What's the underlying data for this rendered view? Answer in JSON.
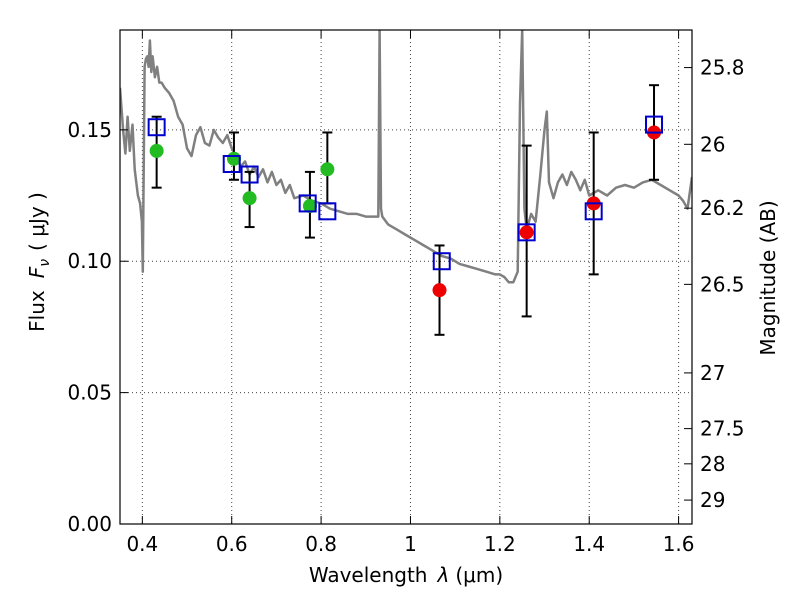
{
  "chart_data": {
    "type": "scatter",
    "xlabel_prefix": "Wavelength",
    "xlabel_symbol": "λ",
    "xlabel_unit": "(μm)",
    "ylabel_prefix": "Flux",
    "ylabel_symbol": "F",
    "ylabel_subscript": "ν",
    "ylabel_unit": "( μJy )",
    "y2label": "Magnitude (AB)",
    "xlim": [
      0.35,
      1.63
    ],
    "ylim": [
      0.0,
      0.188
    ],
    "grid": true,
    "x_ticks": [
      0.4,
      0.6,
      0.8,
      1.0,
      1.2,
      1.4,
      1.6
    ],
    "x_tick_labels": [
      "0.4",
      "0.6",
      "0.8",
      "1",
      "1.2",
      "1.4",
      "1.6"
    ],
    "y_ticks": [
      0.0,
      0.05,
      0.1,
      0.15
    ],
    "y_tick_labels": [
      "0.00",
      "0.05",
      "0.10",
      "0.15"
    ],
    "magnitude_ticks": [
      {
        "label": "25.8",
        "flux": 0.1737
      },
      {
        "label": "26",
        "flux": 0.1445
      },
      {
        "label": "26.2",
        "flux": 0.1202
      },
      {
        "label": "26.5",
        "flux": 0.0912
      },
      {
        "label": "27",
        "flux": 0.0575
      },
      {
        "label": "27.5",
        "flux": 0.0363
      },
      {
        "label": "28",
        "flux": 0.0229
      },
      {
        "label": "29",
        "flux": 0.0091
      }
    ],
    "colors": {
      "template": "#808080",
      "green_points": "#22bb22",
      "red_points": "#ee0000",
      "model_squares": "#0000cc",
      "errorbars": "#000000",
      "grid": "#444444"
    },
    "template_spectrum": [
      [
        0.35,
        0.166
      ],
      [
        0.357,
        0.15
      ],
      [
        0.362,
        0.141
      ],
      [
        0.367,
        0.155
      ],
      [
        0.372,
        0.142
      ],
      [
        0.378,
        0.152
      ],
      [
        0.383,
        0.135
      ],
      [
        0.39,
        0.125
      ],
      [
        0.395,
        0.122
      ],
      [
        0.399,
        0.115
      ],
      [
        0.401,
        0.096
      ],
      [
        0.403,
        0.135
      ],
      [
        0.405,
        0.174
      ],
      [
        0.408,
        0.177
      ],
      [
        0.411,
        0.178
      ],
      [
        0.414,
        0.174
      ],
      [
        0.417,
        0.184
      ],
      [
        0.42,
        0.172
      ],
      [
        0.423,
        0.178
      ],
      [
        0.428,
        0.17
      ],
      [
        0.433,
        0.174
      ],
      [
        0.438,
        0.168
      ],
      [
        0.443,
        0.168
      ],
      [
        0.45,
        0.166
      ],
      [
        0.46,
        0.164
      ],
      [
        0.47,
        0.161
      ],
      [
        0.48,
        0.155
      ],
      [
        0.49,
        0.152
      ],
      [
        0.5,
        0.143
      ],
      [
        0.51,
        0.14
      ],
      [
        0.52,
        0.148
      ],
      [
        0.53,
        0.151
      ],
      [
        0.54,
        0.145
      ],
      [
        0.55,
        0.144
      ],
      [
        0.56,
        0.15
      ],
      [
        0.57,
        0.147
      ],
      [
        0.58,
        0.145
      ],
      [
        0.59,
        0.148
      ],
      [
        0.6,
        0.143
      ],
      [
        0.61,
        0.14
      ],
      [
        0.62,
        0.136
      ],
      [
        0.63,
        0.138
      ],
      [
        0.64,
        0.133
      ],
      [
        0.65,
        0.136
      ],
      [
        0.66,
        0.132
      ],
      [
        0.67,
        0.135
      ],
      [
        0.68,
        0.13
      ],
      [
        0.69,
        0.134
      ],
      [
        0.7,
        0.129
      ],
      [
        0.71,
        0.131
      ],
      [
        0.72,
        0.126
      ],
      [
        0.73,
        0.129
      ],
      [
        0.74,
        0.124
      ],
      [
        0.76,
        0.125
      ],
      [
        0.78,
        0.123
      ],
      [
        0.8,
        0.122
      ],
      [
        0.82,
        0.12
      ],
      [
        0.84,
        0.119
      ],
      [
        0.86,
        0.118
      ],
      [
        0.88,
        0.118
      ],
      [
        0.9,
        0.117
      ],
      [
        0.92,
        0.117
      ],
      [
        0.928,
        0.117
      ],
      [
        0.931,
        0.188
      ],
      [
        0.934,
        0.12
      ],
      [
        0.937,
        0.117
      ],
      [
        0.95,
        0.114
      ],
      [
        0.97,
        0.112
      ],
      [
        0.99,
        0.11
      ],
      [
        1.01,
        0.108
      ],
      [
        1.03,
        0.106
      ],
      [
        1.05,
        0.104
      ],
      [
        1.07,
        0.102
      ],
      [
        1.09,
        0.101
      ],
      [
        1.11,
        0.099
      ],
      [
        1.13,
        0.098
      ],
      [
        1.15,
        0.097
      ],
      [
        1.17,
        0.096
      ],
      [
        1.19,
        0.095
      ],
      [
        1.2,
        0.095
      ],
      [
        1.21,
        0.094
      ],
      [
        1.22,
        0.092
      ],
      [
        1.23,
        0.092
      ],
      [
        1.24,
        0.096
      ],
      [
        1.245,
        0.16
      ],
      [
        1.25,
        0.188
      ],
      [
        1.255,
        0.12
      ],
      [
        1.26,
        0.112
      ],
      [
        1.27,
        0.118
      ],
      [
        1.28,
        0.115
      ],
      [
        1.29,
        0.132
      ],
      [
        1.3,
        0.15
      ],
      [
        1.305,
        0.157
      ],
      [
        1.31,
        0.13
      ],
      [
        1.32,
        0.124
      ],
      [
        1.33,
        0.13
      ],
      [
        1.34,
        0.133
      ],
      [
        1.35,
        0.129
      ],
      [
        1.36,
        0.134
      ],
      [
        1.37,
        0.131
      ],
      [
        1.38,
        0.127
      ],
      [
        1.39,
        0.131
      ],
      [
        1.4,
        0.125
      ],
      [
        1.42,
        0.127
      ],
      [
        1.44,
        0.125
      ],
      [
        1.46,
        0.128
      ],
      [
        1.48,
        0.129
      ],
      [
        1.5,
        0.128
      ],
      [
        1.52,
        0.13
      ],
      [
        1.54,
        0.131
      ],
      [
        1.56,
        0.129
      ],
      [
        1.58,
        0.127
      ],
      [
        1.6,
        0.125
      ],
      [
        1.61,
        0.123
      ],
      [
        1.62,
        0.12
      ],
      [
        1.63,
        0.132
      ]
    ],
    "observed_green": [
      {
        "x": 0.432,
        "y": 0.142
      },
      {
        "x": 0.605,
        "y": 0.139
      },
      {
        "x": 0.64,
        "y": 0.124
      },
      {
        "x": 0.775,
        "y": 0.121
      },
      {
        "x": 0.814,
        "y": 0.135
      }
    ],
    "observed_red": [
      {
        "x": 1.065,
        "y": 0.089
      },
      {
        "x": 1.26,
        "y": 0.111
      },
      {
        "x": 1.41,
        "y": 0.122
      },
      {
        "x": 1.545,
        "y": 0.149
      }
    ],
    "model_squares": [
      {
        "x": 0.432,
        "y": 0.151
      },
      {
        "x": 0.6,
        "y": 0.137
      },
      {
        "x": 0.64,
        "y": 0.133
      },
      {
        "x": 0.77,
        "y": 0.122
      },
      {
        "x": 0.814,
        "y": 0.119
      },
      {
        "x": 1.07,
        "y": 0.1
      },
      {
        "x": 1.26,
        "y": 0.111
      },
      {
        "x": 1.41,
        "y": 0.119
      },
      {
        "x": 1.545,
        "y": 0.152
      }
    ],
    "error_bars": [
      {
        "x": 0.432,
        "low": 0.128,
        "high": 0.155
      },
      {
        "x": 0.605,
        "low": 0.131,
        "high": 0.149
      },
      {
        "x": 0.64,
        "low": 0.113,
        "high": 0.134
      },
      {
        "x": 0.775,
        "low": 0.109,
        "high": 0.134
      },
      {
        "x": 0.814,
        "low": 0.122,
        "high": 0.149
      },
      {
        "x": 1.065,
        "low": 0.072,
        "high": 0.106
      },
      {
        "x": 1.26,
        "low": 0.079,
        "high": 0.144
      },
      {
        "x": 1.41,
        "low": 0.095,
        "high": 0.149
      },
      {
        "x": 1.545,
        "low": 0.131,
        "high": 0.167
      }
    ]
  }
}
